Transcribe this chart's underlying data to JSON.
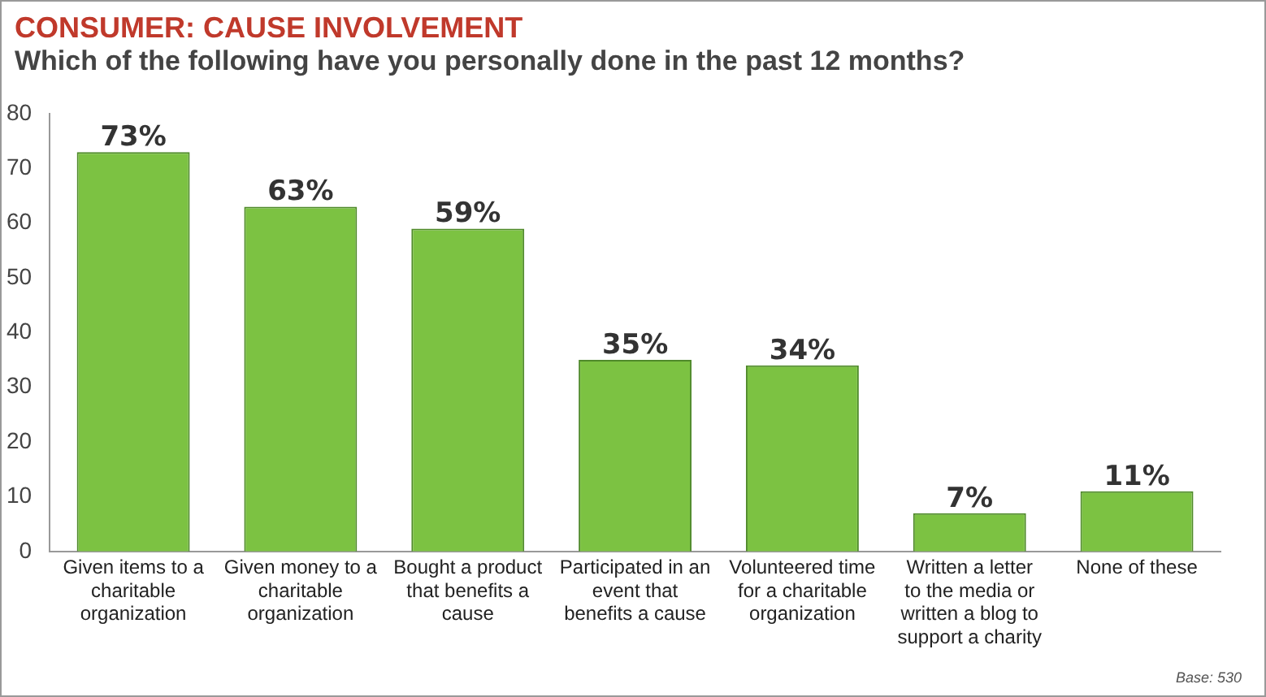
{
  "chart_data": {
    "type": "bar",
    "title": "CONSUMER: CAUSE INVOLVEMENT",
    "subtitle": "Which of the following have you personally done in the past 12 months?",
    "categories": [
      "Given items to a charitable organization",
      "Given money to a charitable organization",
      "Bought a product that benefits a cause",
      "Participated in an event that benefits a cause",
      "Volunteered time for a charitable organization",
      "Written a letter to the media or written a blog to support a charity",
      "None of these"
    ],
    "values": [
      73,
      63,
      59,
      35,
      34,
      7,
      11
    ],
    "value_labels": [
      "73%",
      "63%",
      "59%",
      "35%",
      "34%",
      "7%",
      "11%"
    ],
    "color": "#7cc242",
    "ylim": [
      0,
      80
    ],
    "yticks": [
      0,
      10,
      20,
      30,
      40,
      50,
      60,
      70,
      80
    ],
    "grid": false,
    "annotations": [
      "Base: 530"
    ]
  }
}
